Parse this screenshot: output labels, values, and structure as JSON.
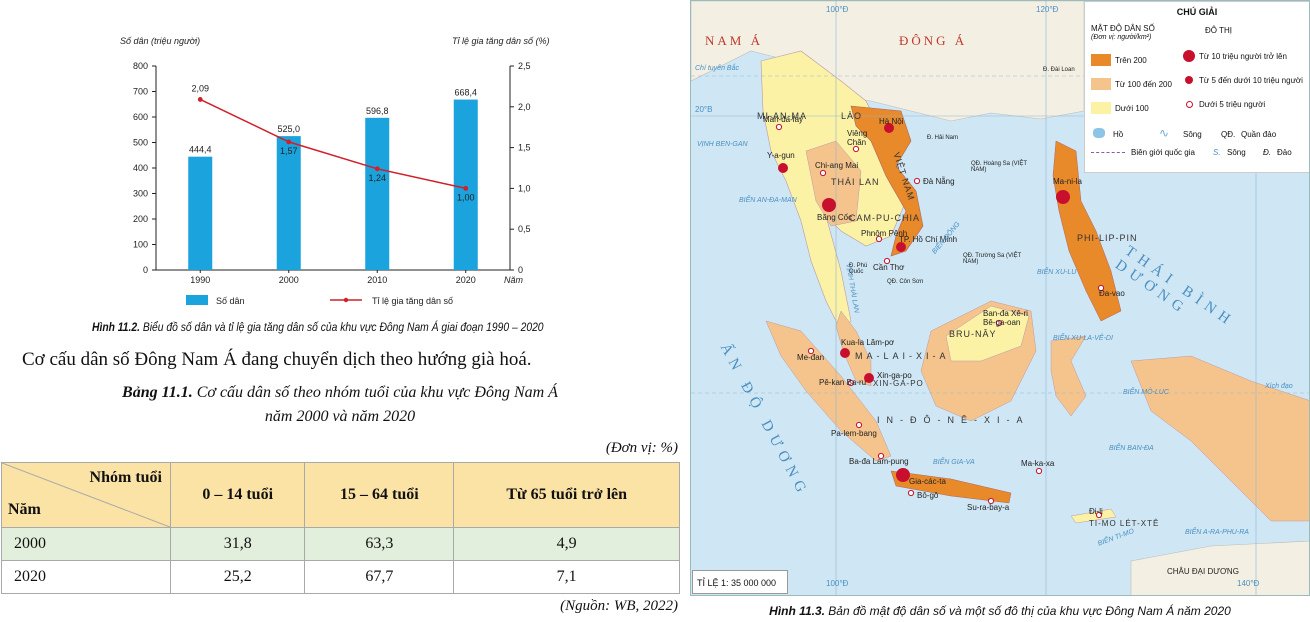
{
  "chart_data": {
    "type": "bar+line",
    "categories": [
      "1990",
      "2000",
      "2010",
      "2020"
    ],
    "series": [
      {
        "name": "Số dân",
        "kind": "bar",
        "axis": "left",
        "values": [
          444.4,
          525.0,
          596.8,
          668.4
        ],
        "labels": [
          "444,4",
          "525,0",
          "596,8",
          "668,4"
        ],
        "color": "#1aa3dd"
      },
      {
        "name": "Tỉ lệ gia tăng dân số",
        "kind": "line",
        "axis": "right",
        "values": [
          2.09,
          1.57,
          1.24,
          1.0
        ],
        "labels": [
          "2,09",
          "1,57",
          "1,24",
          "1,00"
        ],
        "color": "#d0202a"
      }
    ],
    "ylabel_left": "Số dân (triệu người)",
    "ylabel_right": "Tỉ lệ gia tăng dân số (%)",
    "xlabel": "Năm",
    "ylim_left": [
      0,
      800
    ],
    "ylim_right": [
      0,
      2.5
    ],
    "yticks_left": [
      "0",
      "100",
      "200",
      "300",
      "400",
      "500",
      "600",
      "700",
      "800"
    ],
    "yticks_right": [
      "0",
      "0,5",
      "1,0",
      "1,5",
      "2,0",
      "2,5"
    ],
    "legend_placement": "bottom",
    "grid": false
  },
  "figure_caption": {
    "label": "Hình 11.2.",
    "text": " Biểu đồ số dân và tỉ lệ gia tăng dân số của khu vực Đông Nam Á giai đoạn 1990 – 2020"
  },
  "body_text": "Cơ cấu dân số Đông Nam Á đang chuyển dịch theo hướng già hoá.",
  "table": {
    "caption_label": "Bảng 11.1.",
    "caption_line1": " Cơ cấu dân số theo nhóm tuổi của khu vực Đông Nam Á",
    "caption_line2": "năm 2000 và năm 2020",
    "unit": "(Đơn vị: %)",
    "header_group": "Nhóm tuổi",
    "header_year": "Năm",
    "columns": [
      "0 – 14 tuổi",
      "15 – 64 tuổi",
      "Từ 65 tuổi trở lên"
    ],
    "rows": [
      {
        "year": "2000",
        "values": [
          "31,8",
          "63,3",
          "4,9"
        ]
      },
      {
        "year": "2020",
        "values": [
          "25,2",
          "67,7",
          "7,1"
        ]
      }
    ],
    "source": "(Nguồn: WB, 2022)"
  },
  "map": {
    "caption_label": "Hình 11.3.",
    "caption_text": " Bản đồ mật độ dân số và một số đô thị của khu vực Đông Nam Á năm 2020",
    "scale": "TỈ LỆ 1: 35 000 000",
    "legend": {
      "title": "CHÚ GIẢI",
      "density_title": "MẬT ĐỘ DÂN SỐ",
      "density_unit": "(Đơn vị: người/km²)",
      "density_items": [
        {
          "label": "Trên 200",
          "color": "#e8892a"
        },
        {
          "label": "Từ 100 đến 200",
          "color": "#f4c48c"
        },
        {
          "label": "Dưới 100",
          "color": "#fbf2a6"
        }
      ],
      "city_title": "ĐÔ THỊ",
      "city_items": [
        "Từ 10 triệu người trở lên",
        "Từ 5 đến dưới 10 triệu người",
        "Dưới 5 triệu người"
      ],
      "symbols": [
        "Hồ",
        "Sông",
        "QĐ.",
        "Quần đảo"
      ],
      "border": "Biên giới quốc gia",
      "abbr": [
        "S.",
        "Sông",
        "Đ.",
        "Đảo"
      ]
    },
    "regions": [
      "NAM Á",
      "ĐÔNG Á"
    ],
    "oceans": [
      "THÁI BÌNH DƯƠNG",
      "ẤN ĐỘ DƯƠNG"
    ],
    "meridians": [
      "100°Đ",
      "120°Đ",
      "140°Đ"
    ],
    "parallel": "20°B",
    "countries": [
      "MI-AN-MA",
      "LÀO",
      "THÁI LAN",
      "CAM-PU-CHIA",
      "VIỆT NAM",
      "PHI-LIP-PIN",
      "BRU-NÂY",
      "MA-LAI-XI-A",
      "XIN-GA-PO",
      "IN-ĐÔ-NÊ-XI-A",
      "TI-MO LÉT-XTÊ"
    ],
    "cities": [
      "Man-đa-lay",
      "Viêng Chăn",
      "Hà Nội",
      "Chi-ang Mai",
      "Đà Nẵng",
      "Y-a-gun",
      "Băng Cốc",
      "Phnôm Pênh",
      "TP. Hồ Chí Minh",
      "Cần Thơ",
      "Ma-ni-la",
      "Đa-vao",
      "Ban-đa Xê-ri Bê-ga-oan",
      "Kua-la Lăm-pơ",
      "Me-đan",
      "Xin-ga-po",
      "Pê-kan Ba-ru",
      "Pa-lem-bang",
      "Ba-đa Lam-pung",
      "Gia-các-ta",
      "Bô-gô",
      "Su-ra-bay-a",
      "Ma-ka-xa",
      "Đi-li"
    ],
    "seas": [
      "BIỂN AN-ĐA-MAN",
      "BIỂN ĐÔNG",
      "BIỂN XU-LU",
      "BIỂN XU-LA-VÊ-DI",
      "BIỂN GIA-VA",
      "BIỂN BAN-ĐA",
      "BIỂN A-RA-PHU-RA",
      "BIỂN TI-MO",
      "VỊNH BEN-GAN",
      "VỊNH THÁI LAN",
      "BIỂN MÔ-LUC"
    ],
    "labels_other": [
      "Chí tuyến Bắc",
      "Xích đạo",
      "CHÂU ĐẠI DƯƠNG",
      "QĐ. Hoàng Sa (VIỆT NAM)",
      "QĐ. Trường Sa (VIỆT NAM)",
      "Đ. Hải Nam",
      "Đ. Đài Loan",
      "Đ. Phú Quốc",
      "QĐ. Côn Sơn"
    ]
  }
}
